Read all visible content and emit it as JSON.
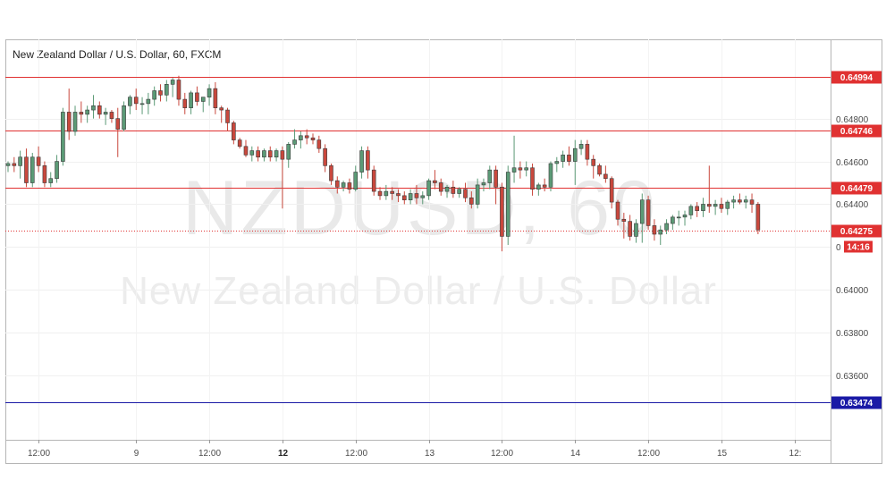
{
  "header": {
    "title": "New Zealand Dollar / U.S. Dollar, 60, FXCM"
  },
  "watermark": {
    "symbol": "NZDUSD, 60",
    "name": "New Zealand Dollar / U.S. Dollar"
  },
  "colors": {
    "up": "#5b9a76",
    "down": "#c9483d",
    "resistance_line": "#e03131",
    "support_line": "#1a1aa6",
    "current_price": "#e03131"
  },
  "chart_data": {
    "type": "candlestick",
    "symbol": "NZDUSD",
    "interval": "60",
    "ylim": [
      0.633,
      0.6517
    ],
    "y_ticks": [
      0.648,
      0.646,
      0.644,
      0.64,
      0.638,
      0.636
    ],
    "y_ticks_partial": [
      "0"
    ],
    "x_ticks": [
      {
        "label": "12:00",
        "bold": false,
        "bar": 5
      },
      {
        "label": "9",
        "bold": false,
        "bar": 21
      },
      {
        "label": "12:00",
        "bold": false,
        "bar": 33
      },
      {
        "label": "12",
        "bold": true,
        "bar": 45
      },
      {
        "label": "12:00",
        "bold": false,
        "bar": 57
      },
      {
        "label": "13",
        "bold": false,
        "bar": 69
      },
      {
        "label": "12:00",
        "bold": false,
        "bar": 81
      },
      {
        "label": "14",
        "bold": false,
        "bar": 93
      },
      {
        "label": "12:00",
        "bold": false,
        "bar": 105
      },
      {
        "label": "15",
        "bold": false,
        "bar": 117
      },
      {
        "label": "12:",
        "bold": false,
        "bar": 129
      }
    ],
    "horizontal_lines": [
      {
        "price": 0.64994,
        "label": "0.64994",
        "style": "solid",
        "color": "#e03131"
      },
      {
        "price": 0.64746,
        "label": "0.64746",
        "style": "solid",
        "color": "#e03131"
      },
      {
        "price": 0.64479,
        "label": "0.64479",
        "style": "solid",
        "color": "#e03131"
      },
      {
        "price": 0.63474,
        "label": "0.63474",
        "style": "solid",
        "color": "#1a1aa6"
      }
    ],
    "current_price": {
      "price": 0.64275,
      "label": "0.64275",
      "countdown": "14:16"
    },
    "ohlc": [
      [
        0.6458,
        0.646,
        0.6455,
        0.6459
      ],
      [
        0.6459,
        0.6462,
        0.6455,
        0.6458
      ],
      [
        0.6458,
        0.6465,
        0.6452,
        0.6462
      ],
      [
        0.6462,
        0.6466,
        0.6448,
        0.645
      ],
      [
        0.645,
        0.6464,
        0.6448,
        0.6462
      ],
      [
        0.6462,
        0.6467,
        0.6455,
        0.6458
      ],
      [
        0.6458,
        0.646,
        0.6448,
        0.645
      ],
      [
        0.645,
        0.6455,
        0.6448,
        0.6452
      ],
      [
        0.6452,
        0.6463,
        0.645,
        0.646
      ],
      [
        0.646,
        0.6485,
        0.6458,
        0.6483
      ],
      [
        0.6483,
        0.6494,
        0.647,
        0.6474
      ],
      [
        0.6474,
        0.6486,
        0.6472,
        0.6483
      ],
      [
        0.6483,
        0.6488,
        0.6478,
        0.6482
      ],
      [
        0.6482,
        0.6486,
        0.6478,
        0.6484
      ],
      [
        0.6484,
        0.6491,
        0.648,
        0.6486
      ],
      [
        0.6486,
        0.6488,
        0.648,
        0.6482
      ],
      [
        0.6482,
        0.6485,
        0.6477,
        0.6483
      ],
      [
        0.6483,
        0.6484,
        0.6478,
        0.648
      ],
      [
        0.648,
        0.6485,
        0.6462,
        0.6475
      ],
      [
        0.6475,
        0.6488,
        0.6474,
        0.6486
      ],
      [
        0.6486,
        0.6491,
        0.6482,
        0.649
      ],
      [
        0.649,
        0.6494,
        0.6484,
        0.6487
      ],
      [
        0.6487,
        0.649,
        0.6482,
        0.6487
      ],
      [
        0.6487,
        0.6492,
        0.6482,
        0.6489
      ],
      [
        0.6489,
        0.6495,
        0.6486,
        0.6493
      ],
      [
        0.6493,
        0.6496,
        0.6488,
        0.6491
      ],
      [
        0.6491,
        0.6498,
        0.6488,
        0.6496
      ],
      [
        0.6496,
        0.6499,
        0.649,
        0.6498
      ],
      [
        0.6498,
        0.65,
        0.6486,
        0.6489
      ],
      [
        0.6489,
        0.6492,
        0.6482,
        0.6485
      ],
      [
        0.6485,
        0.6493,
        0.6482,
        0.6492
      ],
      [
        0.6492,
        0.6495,
        0.6486,
        0.6488
      ],
      [
        0.6488,
        0.649,
        0.6483,
        0.649
      ],
      [
        0.649,
        0.6496,
        0.6486,
        0.6494
      ],
      [
        0.6494,
        0.6497,
        0.6482,
        0.6485
      ],
      [
        0.6485,
        0.6486,
        0.6478,
        0.6484
      ],
      [
        0.6484,
        0.6485,
        0.6474,
        0.6478
      ],
      [
        0.6478,
        0.6479,
        0.6468,
        0.647
      ],
      [
        0.647,
        0.6471,
        0.6466,
        0.6467
      ],
      [
        0.6467,
        0.647,
        0.6462,
        0.6463
      ],
      [
        0.6463,
        0.6467,
        0.646,
        0.6465
      ],
      [
        0.6465,
        0.6467,
        0.646,
        0.6462
      ],
      [
        0.6462,
        0.6466,
        0.646,
        0.6465
      ],
      [
        0.6465,
        0.6467,
        0.646,
        0.6462
      ],
      [
        0.6462,
        0.6466,
        0.646,
        0.6465
      ],
      [
        0.6465,
        0.6467,
        0.6438,
        0.6461
      ],
      [
        0.6461,
        0.6469,
        0.6457,
        0.6468
      ],
      [
        0.6468,
        0.6475,
        0.6466,
        0.647
      ],
      [
        0.647,
        0.6474,
        0.6466,
        0.6472
      ],
      [
        0.6472,
        0.6475,
        0.6468,
        0.6471
      ],
      [
        0.6471,
        0.6473,
        0.6468,
        0.647
      ],
      [
        0.647,
        0.6472,
        0.6464,
        0.6466
      ],
      [
        0.6466,
        0.6468,
        0.6455,
        0.6458
      ],
      [
        0.6458,
        0.6459,
        0.6449,
        0.6451
      ],
      [
        0.6451,
        0.6453,
        0.6445,
        0.6448
      ],
      [
        0.6448,
        0.6451,
        0.6446,
        0.645
      ],
      [
        0.645,
        0.6452,
        0.6445,
        0.6447
      ],
      [
        0.6447,
        0.6458,
        0.6446,
        0.6455
      ],
      [
        0.6455,
        0.6467,
        0.6452,
        0.6465
      ],
      [
        0.6465,
        0.6467,
        0.6452,
        0.6456
      ],
      [
        0.6456,
        0.6458,
        0.6444,
        0.6446
      ],
      [
        0.6446,
        0.6448,
        0.6442,
        0.6444
      ],
      [
        0.6444,
        0.6449,
        0.6442,
        0.6446
      ],
      [
        0.6446,
        0.6448,
        0.6442,
        0.6445
      ],
      [
        0.6445,
        0.6447,
        0.6441,
        0.6444
      ],
      [
        0.6444,
        0.6446,
        0.644,
        0.6442
      ],
      [
        0.6442,
        0.6447,
        0.644,
        0.6445
      ],
      [
        0.6445,
        0.6449,
        0.644,
        0.6443
      ],
      [
        0.6443,
        0.6446,
        0.644,
        0.6444
      ],
      [
        0.6444,
        0.6452,
        0.6442,
        0.6451
      ],
      [
        0.6451,
        0.6456,
        0.6447,
        0.645
      ],
      [
        0.645,
        0.6452,
        0.6444,
        0.6446
      ],
      [
        0.6446,
        0.6449,
        0.6443,
        0.6448
      ],
      [
        0.6448,
        0.6451,
        0.6443,
        0.6445
      ],
      [
        0.6445,
        0.6448,
        0.6443,
        0.6447
      ],
      [
        0.6447,
        0.645,
        0.6441,
        0.6443
      ],
      [
        0.6443,
        0.6446,
        0.6438,
        0.644
      ],
      [
        0.644,
        0.6452,
        0.6438,
        0.6449
      ],
      [
        0.6449,
        0.6452,
        0.6446,
        0.645
      ],
      [
        0.645,
        0.6458,
        0.6447,
        0.6456
      ],
      [
        0.6456,
        0.6458,
        0.644,
        0.6448
      ],
      [
        0.6448,
        0.645,
        0.6418,
        0.6425
      ],
      [
        0.6425,
        0.6458,
        0.6421,
        0.6455
      ],
      [
        0.6455,
        0.6472,
        0.645,
        0.6457
      ],
      [
        0.6457,
        0.646,
        0.6452,
        0.6456
      ],
      [
        0.6456,
        0.646,
        0.6453,
        0.6457
      ],
      [
        0.6457,
        0.6459,
        0.6444,
        0.6447
      ],
      [
        0.6447,
        0.645,
        0.6444,
        0.6449
      ],
      [
        0.6449,
        0.6452,
        0.6446,
        0.6448
      ],
      [
        0.6448,
        0.646,
        0.6446,
        0.6459
      ],
      [
        0.6459,
        0.6462,
        0.6455,
        0.646
      ],
      [
        0.646,
        0.6465,
        0.6457,
        0.6463
      ],
      [
        0.6463,
        0.6467,
        0.6458,
        0.646
      ],
      [
        0.646,
        0.647,
        0.6449,
        0.6466
      ],
      [
        0.6466,
        0.647,
        0.6463,
        0.6468
      ],
      [
        0.6468,
        0.647,
        0.6458,
        0.6461
      ],
      [
        0.6461,
        0.6463,
        0.6452,
        0.6458
      ],
      [
        0.6458,
        0.6459,
        0.6453,
        0.6454
      ],
      [
        0.6454,
        0.6458,
        0.645,
        0.6452
      ],
      [
        0.6452,
        0.6453,
        0.6438,
        0.6441
      ],
      [
        0.6441,
        0.6442,
        0.643,
        0.6433
      ],
      [
        0.6433,
        0.6436,
        0.6424,
        0.6432
      ],
      [
        0.6432,
        0.6435,
        0.6423,
        0.6425
      ],
      [
        0.6425,
        0.6433,
        0.6422,
        0.6431
      ],
      [
        0.6431,
        0.6445,
        0.6422,
        0.6442
      ],
      [
        0.6442,
        0.6444,
        0.6428,
        0.643
      ],
      [
        0.643,
        0.6433,
        0.6423,
        0.6426
      ],
      [
        0.6426,
        0.643,
        0.6421,
        0.6428
      ],
      [
        0.6428,
        0.6433,
        0.6426,
        0.6431
      ],
      [
        0.6431,
        0.6435,
        0.6428,
        0.6434
      ],
      [
        0.6434,
        0.6437,
        0.643,
        0.6434
      ],
      [
        0.6434,
        0.6437,
        0.643,
        0.6435
      ],
      [
        0.6435,
        0.644,
        0.6433,
        0.6439
      ],
      [
        0.6439,
        0.6441,
        0.6434,
        0.6437
      ],
      [
        0.6437,
        0.6443,
        0.6434,
        0.644
      ],
      [
        0.644,
        0.6458,
        0.6436,
        0.6439
      ],
      [
        0.6439,
        0.6442,
        0.6435,
        0.644
      ],
      [
        0.644,
        0.6443,
        0.6436,
        0.6438
      ],
      [
        0.6438,
        0.6442,
        0.6435,
        0.6441
      ],
      [
        0.6441,
        0.6444,
        0.6438,
        0.6442
      ],
      [
        0.6442,
        0.6445,
        0.644,
        0.6441
      ],
      [
        0.6441,
        0.6444,
        0.6438,
        0.6442
      ],
      [
        0.6442,
        0.6445,
        0.6436,
        0.644
      ],
      [
        0.644,
        0.6441,
        0.6426,
        0.6428
      ]
    ]
  }
}
